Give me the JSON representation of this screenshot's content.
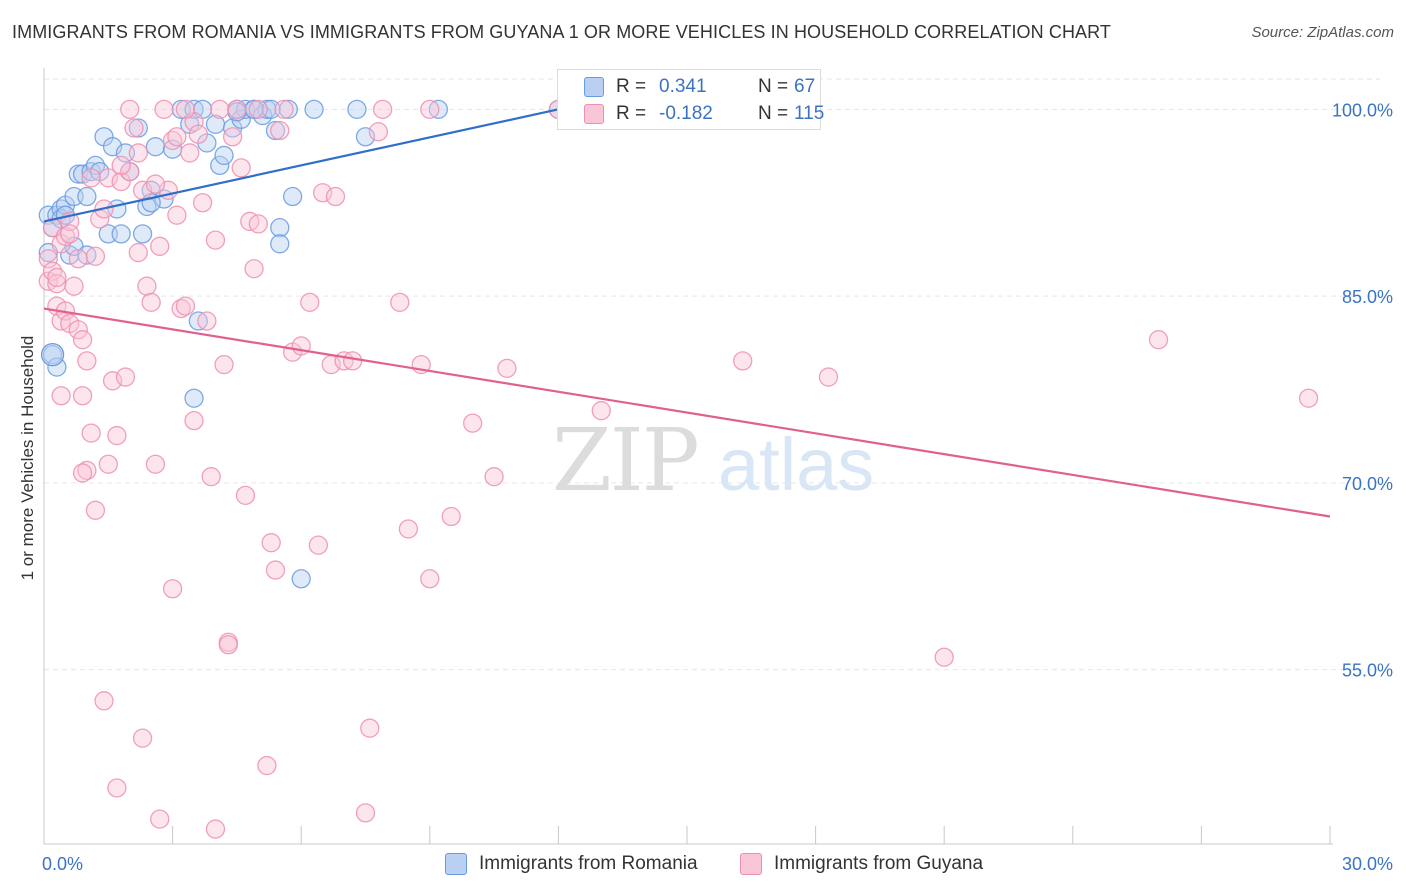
{
  "chart_data": {
    "type": "scatter",
    "title": "IMMIGRANTS FROM ROMANIA VS IMMIGRANTS FROM GUYANA 1 OR MORE VEHICLES IN HOUSEHOLD CORRELATION CHART",
    "source": "Source: ZipAtlas.com",
    "xlabel": "",
    "ylabel": "1 or more Vehicles in Household",
    "xlim": [
      0,
      30
    ],
    "ylim": [
      41,
      103
    ],
    "x_tick_labels": [
      "0.0%",
      "30.0%"
    ],
    "y_ticks": [
      100,
      85,
      70,
      55
    ],
    "y_tick_labels": [
      "100.0%",
      "85.0%",
      "70.0%",
      "55.0%"
    ],
    "grid": true,
    "watermark": "ZIPatlas",
    "legend": [
      {
        "r_label": "R =",
        "r_value": "0.341",
        "n_label": "N =",
        "n_value": "67"
      },
      {
        "r_label": "R =",
        "r_value": "-0.182",
        "n_label": "N =",
        "n_value": "115"
      }
    ],
    "series": [
      {
        "name": "Immigrants from Romania",
        "color": "#6a9be0",
        "fill": "#b9d0f2",
        "trend": {
          "x": [
            0.0,
            12.0
          ],
          "y": [
            91.0,
            100.0
          ]
        },
        "points": [
          [
            0.1,
            91.5
          ],
          [
            0.1,
            88.5
          ],
          [
            0.2,
            90.5
          ],
          [
            0.2,
            80.3
          ],
          [
            0.3,
            79.3
          ],
          [
            0.3,
            91.5
          ],
          [
            0.4,
            92.0
          ],
          [
            0.4,
            91.2
          ],
          [
            0.5,
            92.3
          ],
          [
            0.5,
            91.5
          ],
          [
            0.6,
            88.3
          ],
          [
            0.7,
            89.0
          ],
          [
            0.7,
            93.0
          ],
          [
            0.8,
            94.8
          ],
          [
            0.9,
            94.8
          ],
          [
            1.0,
            93.0
          ],
          [
            1.1,
            95.0
          ],
          [
            1.2,
            95.5
          ],
          [
            1.3,
            95.0
          ],
          [
            1.4,
            97.8
          ],
          [
            1.5,
            90.0
          ],
          [
            1.6,
            97.0
          ],
          [
            1.7,
            92.0
          ],
          [
            1.8,
            90.0
          ],
          [
            1.9,
            96.5
          ],
          [
            2.0,
            95.0
          ],
          [
            2.2,
            98.5
          ],
          [
            2.4,
            92.2
          ],
          [
            2.5,
            93.5
          ],
          [
            2.6,
            97.0
          ],
          [
            2.8,
            92.8
          ],
          [
            3.0,
            96.8
          ],
          [
            3.2,
            100.0
          ],
          [
            3.4,
            98.8
          ],
          [
            3.5,
            100.0
          ],
          [
            3.6,
            83.0
          ],
          [
            3.7,
            100.0
          ],
          [
            3.8,
            97.3
          ],
          [
            4.0,
            98.8
          ],
          [
            4.1,
            95.5
          ],
          [
            4.2,
            96.3
          ],
          [
            4.4,
            98.5
          ],
          [
            4.5,
            100.0
          ],
          [
            4.6,
            99.2
          ],
          [
            4.7,
            100.0
          ],
          [
            4.9,
            100.0
          ],
          [
            5.1,
            99.5
          ],
          [
            5.2,
            100.0
          ],
          [
            5.3,
            100.0
          ],
          [
            5.4,
            98.3
          ],
          [
            5.5,
            90.5
          ],
          [
            5.7,
            100.0
          ],
          [
            5.8,
            93.0
          ],
          [
            6.3,
            100.0
          ],
          [
            7.3,
            100.0
          ],
          [
            7.5,
            97.8
          ],
          [
            9.2,
            100.0
          ],
          [
            12.0,
            100.0
          ],
          [
            12.5,
            100.0
          ],
          [
            4.9,
            100.0
          ],
          [
            1.0,
            88.3
          ],
          [
            2.3,
            90.0
          ],
          [
            4.5,
            99.8
          ],
          [
            3.5,
            76.8
          ],
          [
            5.5,
            89.2
          ],
          [
            2.5,
            92.5
          ],
          [
            6.0,
            62.3
          ]
        ]
      },
      {
        "name": "Immigrants from Guyana",
        "color": "#ef8fb0",
        "fill": "#f8c6d6",
        "trend": {
          "x": [
            0.0,
            30.0
          ],
          "y": [
            84.0,
            67.3
          ]
        },
        "points": [
          [
            0.1,
            86.2
          ],
          [
            0.1,
            88.0
          ],
          [
            0.2,
            87.0
          ],
          [
            0.2,
            90.5
          ],
          [
            0.3,
            86.0
          ],
          [
            0.3,
            84.2
          ],
          [
            0.4,
            83.0
          ],
          [
            0.4,
            89.2
          ],
          [
            0.5,
            89.8
          ],
          [
            0.5,
            83.8
          ],
          [
            0.6,
            82.8
          ],
          [
            0.6,
            91.0
          ],
          [
            0.7,
            85.8
          ],
          [
            0.8,
            82.3
          ],
          [
            0.8,
            88.0
          ],
          [
            0.9,
            81.5
          ],
          [
            0.9,
            77.0
          ],
          [
            1.0,
            79.8
          ],
          [
            1.0,
            71.0
          ],
          [
            1.1,
            74.0
          ],
          [
            1.2,
            67.8
          ],
          [
            1.2,
            88.2
          ],
          [
            1.3,
            91.2
          ],
          [
            1.4,
            92.0
          ],
          [
            1.5,
            71.5
          ],
          [
            1.5,
            94.5
          ],
          [
            1.6,
            78.2
          ],
          [
            1.7,
            73.8
          ],
          [
            1.8,
            94.2
          ],
          [
            1.9,
            78.5
          ],
          [
            2.0,
            95.0
          ],
          [
            2.1,
            98.5
          ],
          [
            2.2,
            88.5
          ],
          [
            2.3,
            93.5
          ],
          [
            2.4,
            85.8
          ],
          [
            2.5,
            84.5
          ],
          [
            2.6,
            71.5
          ],
          [
            2.7,
            89.0
          ],
          [
            2.8,
            100.0
          ],
          [
            2.9,
            93.5
          ],
          [
            3.0,
            97.5
          ],
          [
            3.1,
            91.5
          ],
          [
            3.2,
            84.0
          ],
          [
            3.3,
            84.2
          ],
          [
            3.4,
            96.5
          ],
          [
            3.5,
            99.0
          ],
          [
            3.5,
            75.0
          ],
          [
            3.6,
            98.0
          ],
          [
            3.7,
            92.5
          ],
          [
            3.8,
            83.0
          ],
          [
            3.9,
            70.5
          ],
          [
            4.0,
            89.5
          ],
          [
            4.1,
            100.0
          ],
          [
            4.2,
            79.5
          ],
          [
            4.3,
            57.2
          ],
          [
            4.4,
            97.8
          ],
          [
            4.5,
            100.0
          ],
          [
            4.6,
            95.3
          ],
          [
            4.7,
            69.0
          ],
          [
            4.8,
            91.0
          ],
          [
            4.9,
            87.2
          ],
          [
            5.0,
            90.8
          ],
          [
            5.2,
            47.3
          ],
          [
            5.3,
            65.2
          ],
          [
            5.4,
            63.0
          ],
          [
            5.5,
            98.3
          ],
          [
            5.6,
            100.0
          ],
          [
            5.8,
            80.5
          ],
          [
            6.0,
            81.0
          ],
          [
            6.2,
            84.5
          ],
          [
            6.4,
            65.0
          ],
          [
            6.5,
            93.3
          ],
          [
            6.7,
            79.5
          ],
          [
            7.0,
            79.8
          ],
          [
            7.2,
            79.8
          ],
          [
            7.5,
            43.5
          ],
          [
            7.6,
            50.3
          ],
          [
            7.8,
            98.2
          ],
          [
            8.3,
            84.5
          ],
          [
            8.5,
            66.3
          ],
          [
            8.8,
            79.5
          ],
          [
            9.0,
            62.3
          ],
          [
            9.5,
            67.3
          ],
          [
            10.0,
            74.8
          ],
          [
            10.5,
            70.5
          ],
          [
            10.8,
            79.2
          ],
          [
            13.0,
            75.8
          ],
          [
            16.3,
            79.8
          ],
          [
            18.3,
            78.5
          ],
          [
            21.0,
            56.0
          ],
          [
            26.0,
            81.5
          ],
          [
            29.5,
            76.8
          ],
          [
            1.4,
            52.5
          ],
          [
            1.7,
            45.5
          ],
          [
            2.3,
            49.5
          ],
          [
            2.7,
            43.0
          ],
          [
            3.0,
            61.5
          ],
          [
            4.0,
            42.2
          ],
          [
            4.3,
            57.0
          ],
          [
            5.0,
            100.0
          ],
          [
            6.8,
            93.0
          ],
          [
            3.1,
            97.8
          ],
          [
            2.0,
            100.0
          ],
          [
            9.0,
            100.0
          ],
          [
            7.9,
            100.0
          ],
          [
            12.0,
            100.0
          ],
          [
            0.3,
            86.5
          ],
          [
            0.6,
            90.0
          ],
          [
            1.1,
            94.5
          ],
          [
            2.6,
            94.0
          ],
          [
            3.3,
            100.0
          ],
          [
            1.8,
            95.5
          ],
          [
            0.4,
            77.0
          ],
          [
            0.9,
            70.8
          ],
          [
            2.2,
            96.5
          ]
        ]
      }
    ]
  }
}
